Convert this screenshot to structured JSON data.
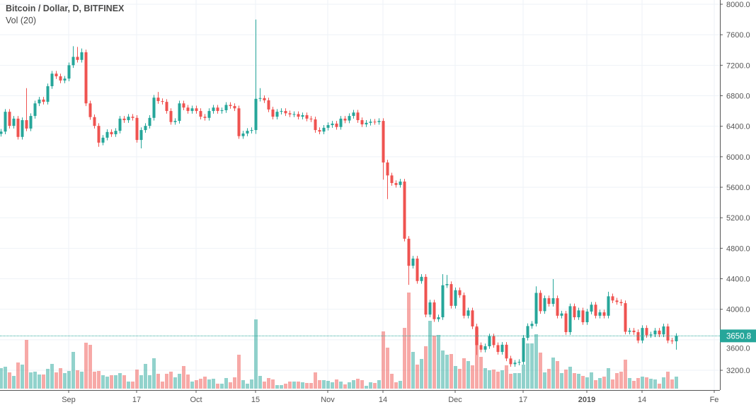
{
  "legend": {
    "title": "Bitcoin / Dollar, D, BITFINEX",
    "volume": "Vol (20)"
  },
  "last_price": {
    "label": "3650.8",
    "value": 3650.8
  },
  "colors": {
    "up": "#26a69a",
    "down": "#ef5350",
    "grid": "#eef2f7",
    "axis": "#555555"
  },
  "chart_data": {
    "type": "candlestick",
    "symbol": "Bitcoin / Dollar",
    "interval": "D",
    "exchange": "BITFINEX",
    "start_date": "2018-08-16",
    "ylim": [
      3000,
      8000
    ],
    "y_ticks": [
      "8000.0",
      "7600.0",
      "7200.0",
      "6800.0",
      "6400.0",
      "6000.0",
      "5600.0",
      "5200.0",
      "4800.0",
      "4400.0",
      "4000.0",
      "3600.0",
      "3200.0"
    ],
    "x_ticks": [
      {
        "label": "Sep",
        "index": 16,
        "bold": false
      },
      {
        "label": "17",
        "index": 32,
        "bold": false
      },
      {
        "label": "Oct",
        "index": 46,
        "bold": false
      },
      {
        "label": "15",
        "index": 60,
        "bold": false
      },
      {
        "label": "Nov",
        "index": 77,
        "bold": false
      },
      {
        "label": "14",
        "index": 90,
        "bold": false
      },
      {
        "label": "Dec",
        "index": 107,
        "bold": false
      },
      {
        "label": "17",
        "index": 123,
        "bold": false
      },
      {
        "label": "2019",
        "index": 138,
        "bold": true
      },
      {
        "label": "14",
        "index": 151,
        "bold": false
      },
      {
        "label": "Fe",
        "index": 168,
        "bold": false
      }
    ],
    "first_open": 6300,
    "close": [
      6330,
      6590,
      6405,
      6500,
      6260,
      6480,
      6370,
      6535,
      6700,
      6750,
      6720,
      6925,
      7090,
      7055,
      7000,
      7025,
      7200,
      7310,
      7270,
      7370,
      6700,
      6520,
      6405,
      6185,
      6250,
      6325,
      6295,
      6340,
      6500,
      6480,
      6525,
      6510,
      6220,
      6350,
      6405,
      6510,
      6775,
      6730,
      6720,
      6600,
      6455,
      6470,
      6700,
      6645,
      6600,
      6635,
      6600,
      6525,
      6510,
      6600,
      6645,
      6600,
      6610,
      6680,
      6665,
      6635,
      6270,
      6305,
      6340,
      6350,
      6760,
      6770,
      6740,
      6620,
      6525,
      6590,
      6600,
      6570,
      6555,
      6560,
      6525,
      6545,
      6500,
      6490,
      6350,
      6330,
      6380,
      6415,
      6435,
      6390,
      6500,
      6475,
      6535,
      6580,
      6480,
      6425,
      6445,
      6460,
      6455,
      6470,
      5925,
      5755,
      5655,
      5630,
      5675,
      4925,
      4570,
      4665,
      4370,
      4425,
      3930,
      4090,
      3870,
      3895,
      4315,
      4330,
      4045,
      4250,
      4185,
      3915,
      3985,
      3775,
      3530,
      3470,
      3515,
      3645,
      3530,
      3440,
      3535,
      3355,
      3280,
      3300,
      3310,
      3625,
      3780,
      3810,
      4215,
      3975,
      4145,
      4070,
      4145,
      3915,
      3945,
      3700,
      4040,
      3895,
      3985,
      3830,
      3970,
      4060,
      3915,
      3960,
      3915,
      4170,
      4115,
      4095,
      4080,
      3705,
      3720,
      3700,
      3590,
      3755,
      3660,
      3670,
      3720,
      3670,
      3775,
      3590,
      3580,
      3650.8
    ],
    "high_overrides": {
      "6": 6900,
      "17": 7450,
      "18": 7440,
      "19": 7420,
      "37": 6850,
      "60": 7800,
      "61": 6900,
      "104": 4460,
      "105": 4450,
      "126": 4300,
      "130": 4395,
      "143": 4230
    },
    "low_overrides": {
      "23": 6130,
      "33": 6110,
      "60": 6300,
      "90": 5700,
      "91": 5445,
      "96": 4320,
      "112": 3400,
      "159": 3470
    },
    "volume_relative": [
      29,
      31,
      23,
      18,
      37,
      34,
      69,
      23,
      24,
      20,
      20,
      28,
      35,
      23,
      29,
      22,
      25,
      52,
      26,
      24,
      65,
      62,
      24,
      25,
      19,
      17,
      19,
      19,
      22,
      19,
      10,
      10,
      27,
      19,
      35,
      19,
      43,
      21,
      10,
      21,
      24,
      16,
      21,
      32,
      20,
      10,
      12,
      14,
      17,
      13,
      14,
      7,
      7,
      15,
      9,
      16,
      48,
      12,
      7,
      13,
      98,
      18,
      10,
      15,
      13,
      5,
      5,
      7,
      10,
      10,
      10,
      9,
      8,
      8,
      23,
      12,
      12,
      11,
      9,
      13,
      10,
      6,
      9,
      12,
      14,
      12,
      4,
      9,
      8,
      12,
      81,
      58,
      21,
      9,
      11,
      86,
      136,
      52,
      34,
      42,
      60,
      96,
      75,
      76,
      54,
      48,
      49,
      32,
      28,
      43,
      39,
      33,
      86,
      45,
      29,
      26,
      27,
      24,
      26,
      33,
      21,
      22,
      22,
      34,
      64,
      64,
      77,
      51,
      23,
      28,
      44,
      39,
      22,
      27,
      31,
      22,
      21,
      18,
      16,
      23,
      12,
      15,
      17,
      29,
      13,
      22,
      24,
      41,
      15,
      11,
      15,
      17,
      16,
      14,
      13,
      7,
      16,
      24,
      13,
      17
    ]
  }
}
